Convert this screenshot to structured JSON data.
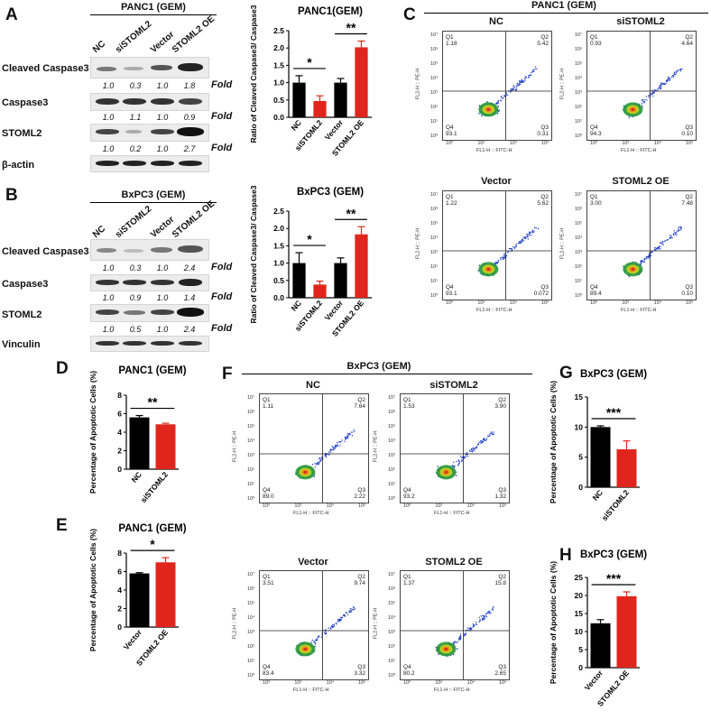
{
  "panelA": {
    "label": "A",
    "title": "PANC1 (GEM)",
    "lanes": [
      "NC",
      "siSTOML2",
      "Vector",
      "STOML2 OE"
    ],
    "rows": [
      {
        "name": "Cleaved Caspase3",
        "fold": [
          "1.0",
          "0.3",
          "1.0",
          "1.8"
        ]
      },
      {
        "name": "Caspase3",
        "fold": [
          "1.0",
          "1.1",
          "1.0",
          "0.9"
        ]
      },
      {
        "name": "STOML2",
        "fold": [
          "1.0",
          "0.2",
          "1.0",
          "2.7"
        ]
      },
      {
        "name": "β-actin",
        "fold": null
      }
    ],
    "fold_label": "Fold"
  },
  "panelB": {
    "label": "B",
    "title": "BxPC3 (GEM)",
    "lanes": [
      "NC",
      "siSTOML2",
      "Vector",
      "STOML2 OE"
    ],
    "rows": [
      {
        "name": "Cleaved Caspase3",
        "fold": [
          "1.0",
          "0.3",
          "1.0",
          "2.4"
        ]
      },
      {
        "name": "Caspase3",
        "fold": [
          "1.0",
          "0.9",
          "1.0",
          "1.4"
        ]
      },
      {
        "name": "STOML2",
        "fold": [
          "1.0",
          "0.5",
          "1.0",
          "2.4"
        ]
      },
      {
        "name": "Vinculin",
        "fold": null
      }
    ],
    "fold_label": "Fold"
  },
  "panelC": {
    "label": "C",
    "title": "PANC1 (GEM)",
    "plots": [
      {
        "name": "NC",
        "q1": "1.18",
        "q2": "5.42",
        "q3": "0.31",
        "q4": "93.1"
      },
      {
        "name": "siSTOML2",
        "q1": "0.93",
        "q2": "4.64",
        "q3": "0.10",
        "q4": "94.3"
      },
      {
        "name": "Vector",
        "q1": "1.22",
        "q2": "5.62",
        "q3": "0.072",
        "q4": "93.1"
      },
      {
        "name": "STOML2 OE",
        "q1": "3.00",
        "q2": "7.48",
        "q3": "0.10",
        "q4": "89.4"
      }
    ]
  },
  "panelF": {
    "label": "F",
    "title": "BxPC3 (GEM)",
    "plots": [
      {
        "name": "NC",
        "q1": "1.11",
        "q2": "7.64",
        "q3": "2.22",
        "q4": "89.0"
      },
      {
        "name": "siSTOML2",
        "q1": "1.53",
        "q2": "3.90",
        "q3": "1.32",
        "q4": "93.2"
      },
      {
        "name": "Vector",
        "q1": "3.51",
        "q2": "9.74",
        "q3": "3.32",
        "q4": "83.4"
      },
      {
        "name": "STOML2 OE",
        "q1": "1.37",
        "q2": "15.8",
        "q3": "2.65",
        "q4": "80.2"
      }
    ]
  },
  "flow_axes": {
    "x_label": "FL1-H :: FITC-H",
    "y_label": "FL2-H :: PE-H",
    "q_names": [
      "Q1",
      "Q2",
      "Q3",
      "Q4"
    ],
    "x_ticks": [
      "10⁰",
      "10²",
      "10⁴",
      "10⁶"
    ],
    "y_ticks": [
      "10⁷",
      "10⁶",
      "10⁵",
      "10⁴",
      "10³",
      "10²",
      "10¹",
      "10⁰"
    ]
  },
  "panelD_label": "D",
  "panelE_label": "E",
  "panelG_label": "G",
  "panelH_label": "H",
  "colors": {
    "black_bar": "#000000",
    "red_bar": "#e0261c",
    "scatter": "#1f3fc4"
  },
  "chart_data": [
    {
      "id": "chartA",
      "type": "bar",
      "title": "PANC1(GEM)",
      "categories": [
        "NC",
        "siSTOML2",
        "Vector",
        "STOML2 OE"
      ],
      "values": [
        1.0,
        0.47,
        1.0,
        2.02
      ],
      "errors": [
        0.2,
        0.15,
        0.12,
        0.18
      ],
      "colors": [
        "black",
        "red",
        "black",
        "red"
      ],
      "ylabel": "Ratio of Cleaved Caspase3/ Caspase3",
      "ylim": [
        0,
        2.5
      ],
      "yticks": [
        "0.0",
        "0.5",
        "1.0",
        "1.5",
        "2.0",
        "2.5"
      ],
      "annotations": [
        {
          "text": "*",
          "from": 0,
          "to": 1
        },
        {
          "text": "**",
          "from": 2,
          "to": 3
        }
      ]
    },
    {
      "id": "chartB",
      "type": "bar",
      "title": "BxPC3 (GEM)",
      "categories": [
        "NC",
        "siSTOML2",
        "Vector",
        "STOML2 OE"
      ],
      "values": [
        1.0,
        0.38,
        1.0,
        1.83
      ],
      "errors": [
        0.3,
        0.1,
        0.15,
        0.22
      ],
      "colors": [
        "black",
        "red",
        "black",
        "red"
      ],
      "ylabel": "Ratio of Cleaved Caspase3/ Caspase3",
      "ylim": [
        0,
        2.5
      ],
      "yticks": [
        "0.0",
        "0.5",
        "1.0",
        "1.5",
        "2.0",
        "2.5"
      ],
      "annotations": [
        {
          "text": "*",
          "from": 0,
          "to": 1
        },
        {
          "text": "**",
          "from": 2,
          "to": 3
        }
      ]
    },
    {
      "id": "chartD",
      "type": "bar",
      "title": "PANC1 (GEM)",
      "categories": [
        "NC",
        "siSTOML2"
      ],
      "values": [
        5.6,
        4.85
      ],
      "errors": [
        0.2,
        0.12
      ],
      "colors": [
        "black",
        "red"
      ],
      "ylabel": "Percentage of Apoptotic Cells (%)",
      "ylim": [
        0,
        8
      ],
      "yticks": [
        "0",
        "2",
        "4",
        "6",
        "8"
      ],
      "annotations": [
        {
          "text": "**",
          "from": 0,
          "to": 1
        }
      ]
    },
    {
      "id": "chartE",
      "type": "bar",
      "title": "PANC1 (GEM)",
      "categories": [
        "Vector",
        "STOML2 OE"
      ],
      "values": [
        5.8,
        7.0
      ],
      "errors": [
        0.08,
        0.5
      ],
      "colors": [
        "black",
        "red"
      ],
      "ylabel": "Percentage of Apoptotic Cells (%)",
      "ylim": [
        0,
        8
      ],
      "yticks": [
        "0",
        "2",
        "4",
        "6",
        "8"
      ],
      "annotations": [
        {
          "text": "*",
          "from": 0,
          "to": 1
        }
      ]
    },
    {
      "id": "chartG",
      "type": "bar",
      "title": "BxPC3 (GEM)",
      "categories": [
        "NC",
        "siSTOML2"
      ],
      "values": [
        10.0,
        6.3
      ],
      "errors": [
        0.2,
        1.4
      ],
      "colors": [
        "black",
        "red"
      ],
      "ylabel": "Percentage of Apoptotic Cells (%)",
      "ylim": [
        0,
        15
      ],
      "yticks": [
        "0",
        "5",
        "10",
        "15"
      ],
      "annotations": [
        {
          "text": "***",
          "from": 0,
          "to": 1
        }
      ]
    },
    {
      "id": "chartH",
      "type": "bar",
      "title": "BxPC3 (GEM)",
      "categories": [
        "Vector",
        "STOML2 OE"
      ],
      "values": [
        12.3,
        19.8
      ],
      "errors": [
        1.0,
        1.2
      ],
      "colors": [
        "black",
        "red"
      ],
      "ylabel": "Percentage of Apoptotic Cells (%)",
      "ylim": [
        0,
        25
      ],
      "yticks": [
        "0",
        "5",
        "10",
        "15",
        "20",
        "25"
      ],
      "annotations": [
        {
          "text": "***",
          "from": 0,
          "to": 1
        }
      ]
    }
  ]
}
